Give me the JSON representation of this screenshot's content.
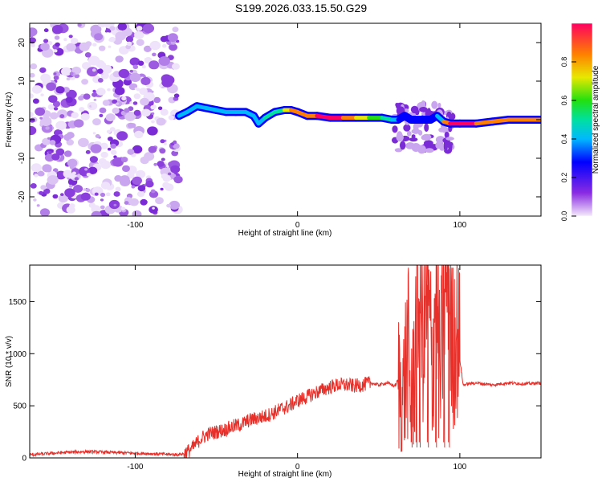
{
  "title": "S199.2026.033.15.50.G29",
  "chart_data": [
    {
      "type": "heatmap",
      "xlabel": "Height of straight line (km)",
      "ylabel": "Frequency (Hz)",
      "xlim": [
        -165,
        150
      ],
      "ylim": [
        -25,
        25
      ],
      "x_ticks": [
        -100,
        0,
        100
      ],
      "x_tick_labels": [
        "-100",
        "0",
        "100"
      ],
      "y_ticks": [
        -20,
        -10,
        0,
        10,
        20
      ],
      "y_tick_labels": [
        "-20",
        "-10",
        "0",
        "10",
        "20"
      ],
      "colorbar": {
        "label": "Normalized spectral amplitude",
        "range": [
          0,
          1
        ],
        "ticks": [
          0.0,
          0.2,
          0.4,
          0.6,
          0.8
        ],
        "tick_labels": [
          "0.0",
          "0.2",
          "0.4",
          "0.6",
          "0.8"
        ]
      },
      "noise_region_x": [
        -165,
        -73
      ],
      "signal_ridge": {
        "x": [
          -73,
          -68,
          -62,
          -56,
          -50,
          -44,
          -38,
          -32,
          -27,
          -24,
          -20,
          -14,
          -8,
          -4,
          0,
          6,
          12,
          20,
          28,
          36,
          44,
          52,
          58,
          62,
          66,
          70,
          74,
          78,
          82,
          86,
          90,
          94,
          100,
          110,
          120,
          130,
          140,
          150
        ],
        "freq_hz": [
          1,
          2,
          3.5,
          3,
          2.5,
          2,
          2,
          2,
          1,
          -1,
          0.5,
          2,
          2.5,
          2.5,
          2,
          1,
          1,
          0.5,
          0.5,
          0.5,
          0.5,
          0.5,
          0,
          0,
          1,
          0,
          0,
          0,
          0,
          1,
          -0.5,
          -1,
          -1,
          -1,
          -0.5,
          0,
          0,
          0
        ],
        "amplitude": [
          0.3,
          0.35,
          0.35,
          0.3,
          0.3,
          0.35,
          0.35,
          0.3,
          0.3,
          0.35,
          0.4,
          0.45,
          0.5,
          0.75,
          0.8,
          0.8,
          0.85,
          0.9,
          0.95,
          0.7,
          0.6,
          0.5,
          0.5,
          0.2,
          0.25,
          0.2,
          0.25,
          0.2,
          0.25,
          0.2,
          0.6,
          0.85,
          0.9,
          0.85,
          0.8,
          0.7,
          0.75,
          0.7
        ]
      }
    },
    {
      "type": "line",
      "xlabel": "Height of straight line (km)",
      "ylabel": "SNR (10 * v/v)",
      "xlim": [
        -165,
        150
      ],
      "ylim": [
        0,
        1850
      ],
      "x_ticks": [
        -100,
        0,
        100
      ],
      "x_tick_labels": [
        "-100",
        "0",
        "100"
      ],
      "y_ticks": [
        0,
        500,
        1000,
        1500
      ],
      "y_tick_labels": [
        "0",
        "500",
        "1000",
        "1500"
      ],
      "series": [
        {
          "name": "SNR",
          "color": "#e8302a",
          "x": [
            -165,
            -150,
            -140,
            -130,
            -120,
            -110,
            -100,
            -90,
            -80,
            -75,
            -70,
            -65,
            -60,
            -55,
            -50,
            -45,
            -40,
            -35,
            -30,
            -25,
            -20,
            -15,
            -10,
            -5,
            0,
            5,
            10,
            15,
            20,
            25,
            30,
            35,
            40,
            45,
            50,
            55,
            60,
            62,
            65,
            68,
            70,
            73,
            75,
            78,
            80,
            83,
            85,
            88,
            90,
            93,
            95,
            98,
            100,
            102,
            105,
            110,
            120,
            130,
            140,
            150
          ],
          "y": [
            30,
            45,
            55,
            60,
            55,
            50,
            45,
            40,
            35,
            30,
            40,
            90,
            180,
            230,
            250,
            270,
            300,
            320,
            360,
            380,
            400,
            430,
            470,
            500,
            550,
            580,
            620,
            650,
            680,
            700,
            700,
            690,
            700,
            720,
            700,
            720,
            690,
            750,
            600,
            1050,
            350,
            1250,
            1500,
            1100,
            1660,
            800,
            1620,
            700,
            1400,
            1850,
            1000,
            1300,
            950,
            700,
            710,
            720,
            700,
            720,
            710,
            720
          ]
        }
      ]
    }
  ]
}
